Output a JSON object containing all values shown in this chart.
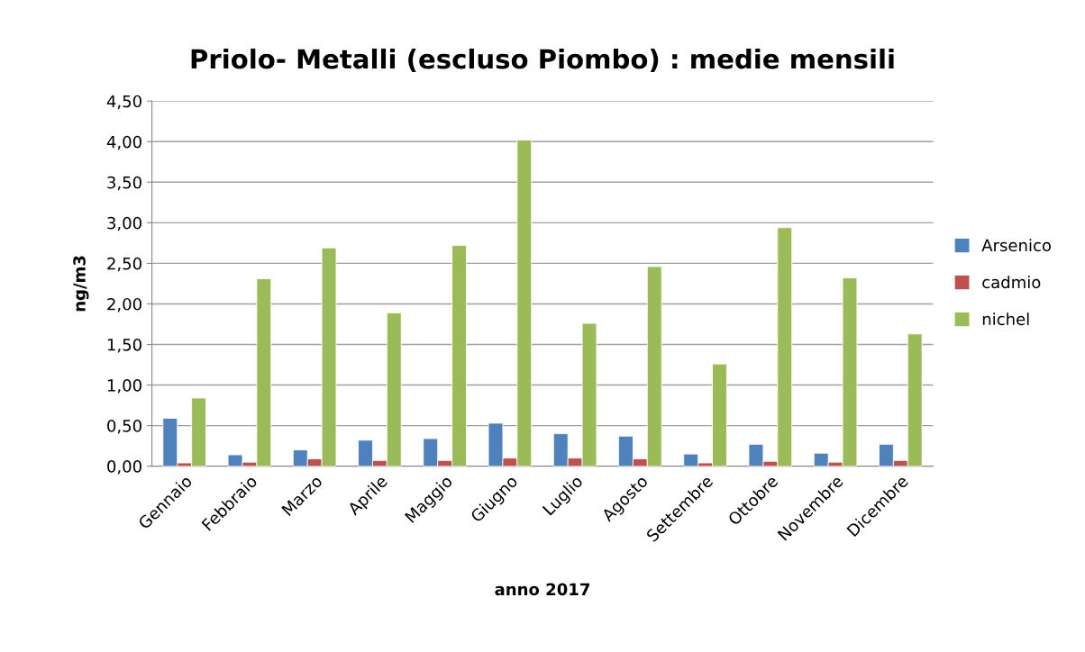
{
  "chart_data": {
    "type": "bar",
    "title": "Priolo- Metalli (escluso Piombo) : medie mensili",
    "xlabel": "anno 2017",
    "ylabel": "ng/m3",
    "categories": [
      "Gennaio",
      "Febbraio",
      "Marzo",
      "Aprile",
      "Maggio",
      "Giugno",
      "Luglio",
      "Agosto",
      "Settembre",
      "Ottobre",
      "Novembre",
      "Dicembre"
    ],
    "series": [
      {
        "name": "Arsenico",
        "color": "#4f81bd",
        "values": [
          0.59,
          0.14,
          0.2,
          0.32,
          0.34,
          0.53,
          0.4,
          0.37,
          0.15,
          0.27,
          0.16,
          0.27
        ]
      },
      {
        "name": "cadmio",
        "color": "#c0504d",
        "values": [
          0.04,
          0.05,
          0.09,
          0.07,
          0.07,
          0.1,
          0.1,
          0.09,
          0.04,
          0.06,
          0.05,
          0.07
        ]
      },
      {
        "name": "nichel",
        "color": "#9bbb59",
        "values": [
          0.84,
          2.31,
          2.69,
          1.89,
          2.72,
          4.02,
          1.76,
          2.46,
          1.26,
          2.94,
          2.32,
          1.63
        ]
      }
    ],
    "ylim": [
      0,
      4.5
    ],
    "yticks": [
      {
        "value": 0,
        "label": "0,00"
      },
      {
        "value": 0.5,
        "label": "0,50"
      },
      {
        "value": 1,
        "label": "1,00"
      },
      {
        "value": 1.5,
        "label": "1,50"
      },
      {
        "value": 2,
        "label": "2,00"
      },
      {
        "value": 2.5,
        "label": "2,50"
      },
      {
        "value": 3,
        "label": "3,00"
      },
      {
        "value": 3.5,
        "label": "3,50"
      },
      {
        "value": 4,
        "label": "4,00"
      },
      {
        "value": 4.5,
        "label": "4,50"
      }
    ],
    "grid": "y",
    "legend": "right"
  }
}
